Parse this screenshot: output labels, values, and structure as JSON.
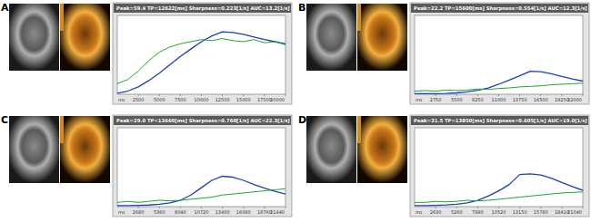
{
  "chart_data": [
    {
      "type": "line",
      "panel": "A",
      "title": "Peak=59.4 TP=12622[ms] Sharpness=0.223[1/s] AUC=13.2[1/s]",
      "x_label": "ms",
      "xlim": [
        0,
        20000
      ],
      "xticks": [
        2500,
        5000,
        7500,
        10000,
        12500,
        15000,
        17500,
        20000
      ],
      "ylim": [
        0,
        75
      ],
      "tick_labels": "x",
      "grid": false,
      "x": [
        0,
        1250,
        2500,
        3750,
        5000,
        6250,
        7500,
        8750,
        10000,
        11250,
        12500,
        13750,
        15000,
        16250,
        17500,
        18750,
        20000
      ],
      "series": [
        {
          "color": "#1c3fb8",
          "values": [
            1,
            3,
            7,
            13,
            20,
            28,
            36,
            43,
            50,
            55.5,
            59.4,
            58.8,
            57,
            54.5,
            52,
            50,
            48
          ]
        },
        {
          "color": "#22a52a",
          "values": [
            10,
            14,
            22,
            32,
            40,
            45,
            48,
            50,
            52,
            51,
            53,
            51,
            50,
            52,
            49,
            50,
            47
          ]
        }
      ]
    },
    {
      "type": "line",
      "panel": "B",
      "title": "Peak=22.2 TP=15600[ms] Sharpness=0.554[1/s] AUC=12.3[1/s]",
      "x_label": "ms",
      "xlim": [
        0,
        22000
      ],
      "xticks": [
        2750,
        5500,
        8250,
        11000,
        13750,
        16500,
        19250,
        22000
      ],
      "ylim": [
        0,
        75
      ],
      "tick_labels": "x",
      "grid": false,
      "x": [
        0,
        1375,
        2750,
        4125,
        5500,
        6875,
        8250,
        9625,
        11000,
        12375,
        13750,
        15125,
        16500,
        17875,
        19250,
        20625,
        22000
      ],
      "series": [
        {
          "color": "#1c3fb8",
          "values": [
            0.5,
            0.5,
            0.6,
            0.8,
            1.3,
            2.2,
            3.8,
            6,
            9.5,
            13.5,
            17.5,
            21.8,
            21.5,
            19.5,
            17,
            14.5,
            12.5
          ]
        },
        {
          "color": "#22a52a",
          "values": [
            3,
            3.5,
            3,
            4,
            3.5,
            4,
            5,
            4.5,
            5.5,
            6,
            7,
            7.5,
            8,
            9,
            9.5,
            10,
            10.5
          ]
        }
      ]
    },
    {
      "type": "line",
      "panel": "C",
      "title": "Peak=29.0 TP=13660[ms] Sharpness=0.760[1/s] AUC=22.3[1/s]",
      "x_label": "ms",
      "xlim": [
        0,
        21440
      ],
      "xticks": [
        2680,
        5360,
        8040,
        10720,
        13400,
        16080,
        18760,
        21440
      ],
      "ylim": [
        0,
        75
      ],
      "tick_labels": "x",
      "grid": false,
      "x": [
        0,
        1340,
        2680,
        4020,
        5360,
        6700,
        8040,
        9380,
        10720,
        12060,
        13400,
        14740,
        16080,
        17420,
        18760,
        20100,
        21440
      ],
      "series": [
        {
          "color": "#1c3fb8",
          "values": [
            1,
            1,
            1.2,
            1.5,
            2.2,
            3.5,
            6,
            11,
            18,
            25,
            28.9,
            28,
            25,
            21,
            17.5,
            14.5,
            12
          ]
        },
        {
          "color": "#22a52a",
          "values": [
            4,
            5,
            4,
            5,
            6,
            5.5,
            6,
            7,
            8,
            9,
            11,
            12,
            13,
            14,
            15,
            16,
            17
          ]
        }
      ]
    },
    {
      "type": "line",
      "panel": "D",
      "title": "Peak=31.5 TP=13850[ms] Sharpness=0.605[1/s] AUC=19.0[1/s]",
      "x_label": "ms",
      "xlim": [
        0,
        21040
      ],
      "xticks": [
        2630,
        5260,
        7890,
        10520,
        13150,
        15780,
        18410,
        21040
      ],
      "ylim": [
        0,
        75
      ],
      "tick_labels": "x",
      "grid": false,
      "x": [
        0,
        1315,
        2630,
        3945,
        5260,
        6575,
        7890,
        9205,
        10520,
        11835,
        13150,
        14465,
        15780,
        17095,
        18410,
        19725,
        21040
      ],
      "series": [
        {
          "color": "#1c3fb8",
          "values": [
            1,
            1,
            1.2,
            1.6,
            2.3,
            3.5,
            6,
            10,
            15,
            21,
            30.5,
            31.2,
            30,
            27,
            23,
            19,
            15.5
          ]
        },
        {
          "color": "#22a52a",
          "values": [
            4,
            4,
            5,
            4.5,
            5,
            6,
            5.5,
            6,
            7,
            8,
            9,
            10,
            11,
            12,
            13,
            13.5,
            14
          ]
        }
      ]
    }
  ]
}
